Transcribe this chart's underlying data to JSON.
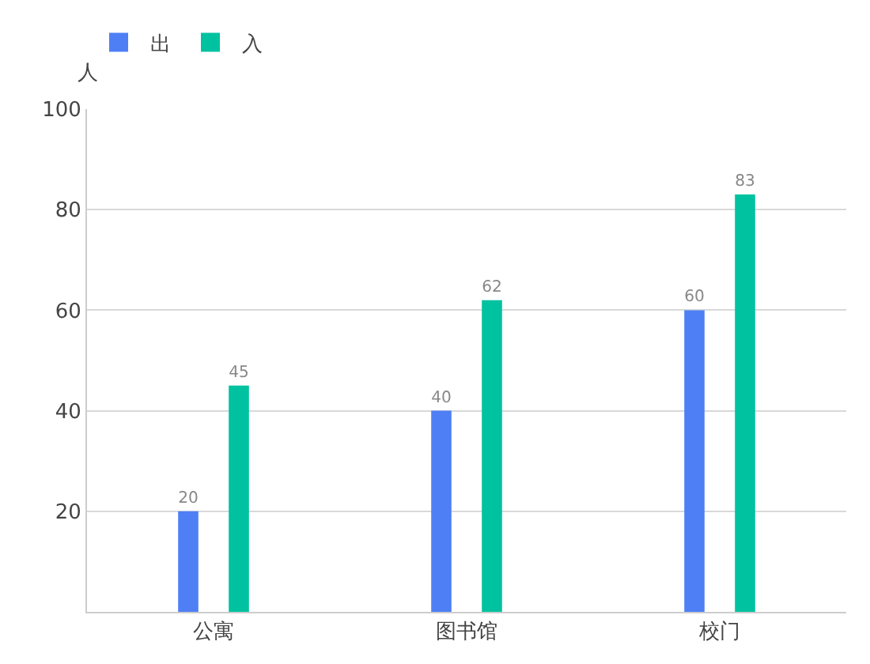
{
  "chart_data": {
    "type": "bar",
    "ylabel": "人",
    "categories": [
      "公寓",
      "图书馆",
      "校门"
    ],
    "series": [
      {
        "name": "出",
        "color": "#4f7ff5",
        "values": [
          20,
          40,
          60
        ]
      },
      {
        "name": "入",
        "color": "#00c2a0",
        "values": [
          45,
          62,
          83
        ]
      }
    ],
    "ylim": [
      0,
      100
    ],
    "yticks": [
      20,
      40,
      60,
      80,
      100
    ],
    "grid": "y",
    "legend": "top left",
    "data_labels": true
  }
}
